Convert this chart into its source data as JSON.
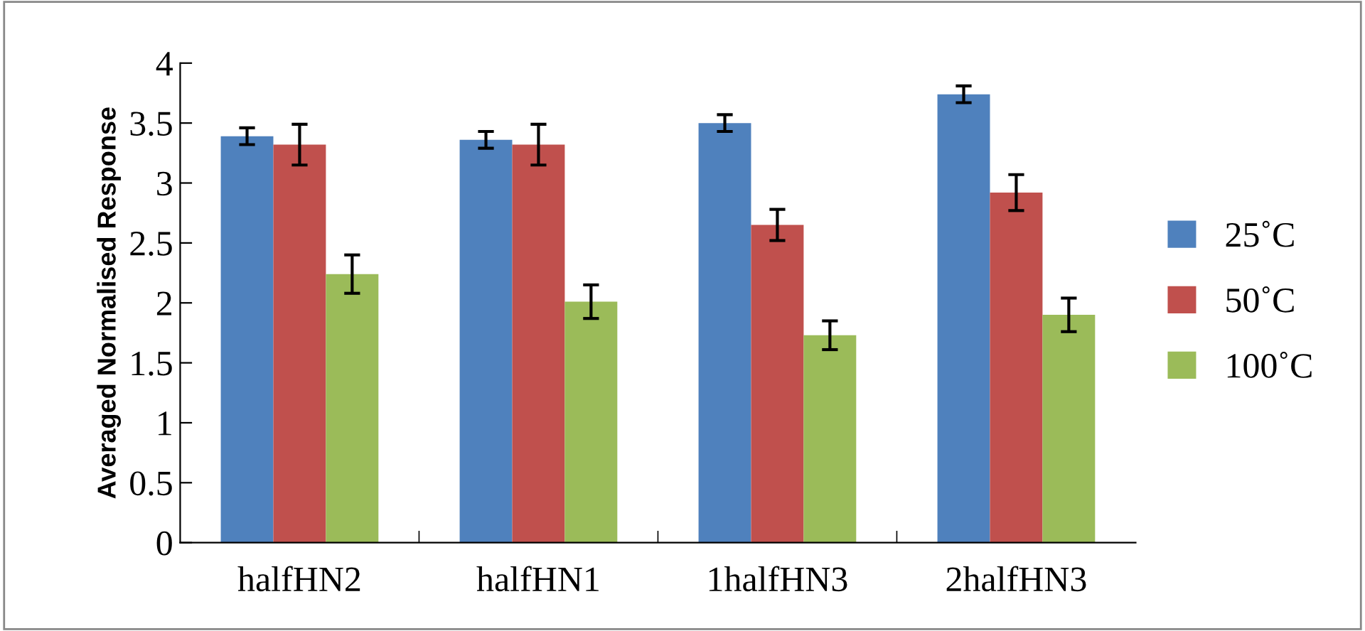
{
  "chart_data": {
    "type": "bar",
    "ylabel": "Averaged Normalised Response",
    "categories": [
      "halfHN2",
      "halfHN1",
      "1halfHN3",
      "2halfHN3"
    ],
    "series": [
      {
        "name": "25˚C",
        "color": "#4f81bd",
        "values": [
          3.39,
          3.36,
          3.5,
          3.74
        ],
        "errors": [
          0.07,
          0.07,
          0.07,
          0.07
        ]
      },
      {
        "name": "50˚C",
        "color": "#c0504d",
        "values": [
          3.32,
          3.32,
          2.65,
          2.92
        ],
        "errors": [
          0.17,
          0.17,
          0.13,
          0.15
        ]
      },
      {
        "name": "100˚C",
        "color": "#9bbb59",
        "values": [
          2.24,
          2.01,
          1.73,
          1.9
        ],
        "errors": [
          0.16,
          0.14,
          0.12,
          0.14
        ]
      }
    ],
    "ylim": [
      0,
      4
    ],
    "yticks": [
      0,
      0.5,
      1,
      1.5,
      2,
      2.5,
      3,
      3.5,
      4
    ],
    "grid": false,
    "legend": "right"
  }
}
